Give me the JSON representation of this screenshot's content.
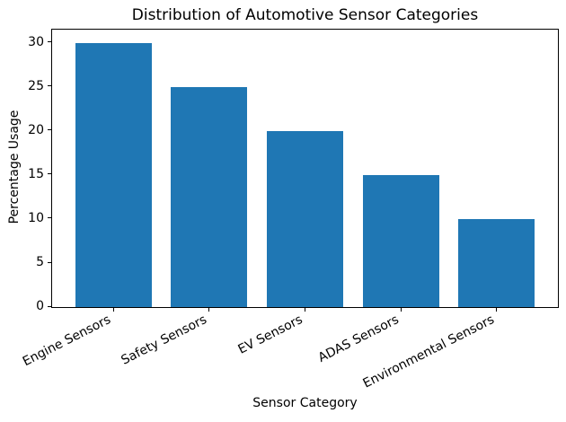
{
  "figure": {
    "background": "#ffffff",
    "text_color": "#000000"
  },
  "chart_data": {
    "type": "bar",
    "title": "Distribution of Automotive Sensor Categories",
    "xlabel": "Sensor Category",
    "ylabel": "Percentage Usage",
    "categories": [
      "Engine Sensors",
      "Safety Sensors",
      "EV Sensors",
      "ADAS Sensors",
      "Environmental Sensors"
    ],
    "values": [
      30,
      25,
      20,
      15,
      10
    ],
    "yticks": [
      0,
      5,
      10,
      15,
      20,
      25,
      30
    ],
    "ylim": [
      0,
      31.5
    ],
    "bar_color": "#1f77b4",
    "grid": false,
    "legend": "none",
    "tick_label_rotation_deg": 27
  }
}
